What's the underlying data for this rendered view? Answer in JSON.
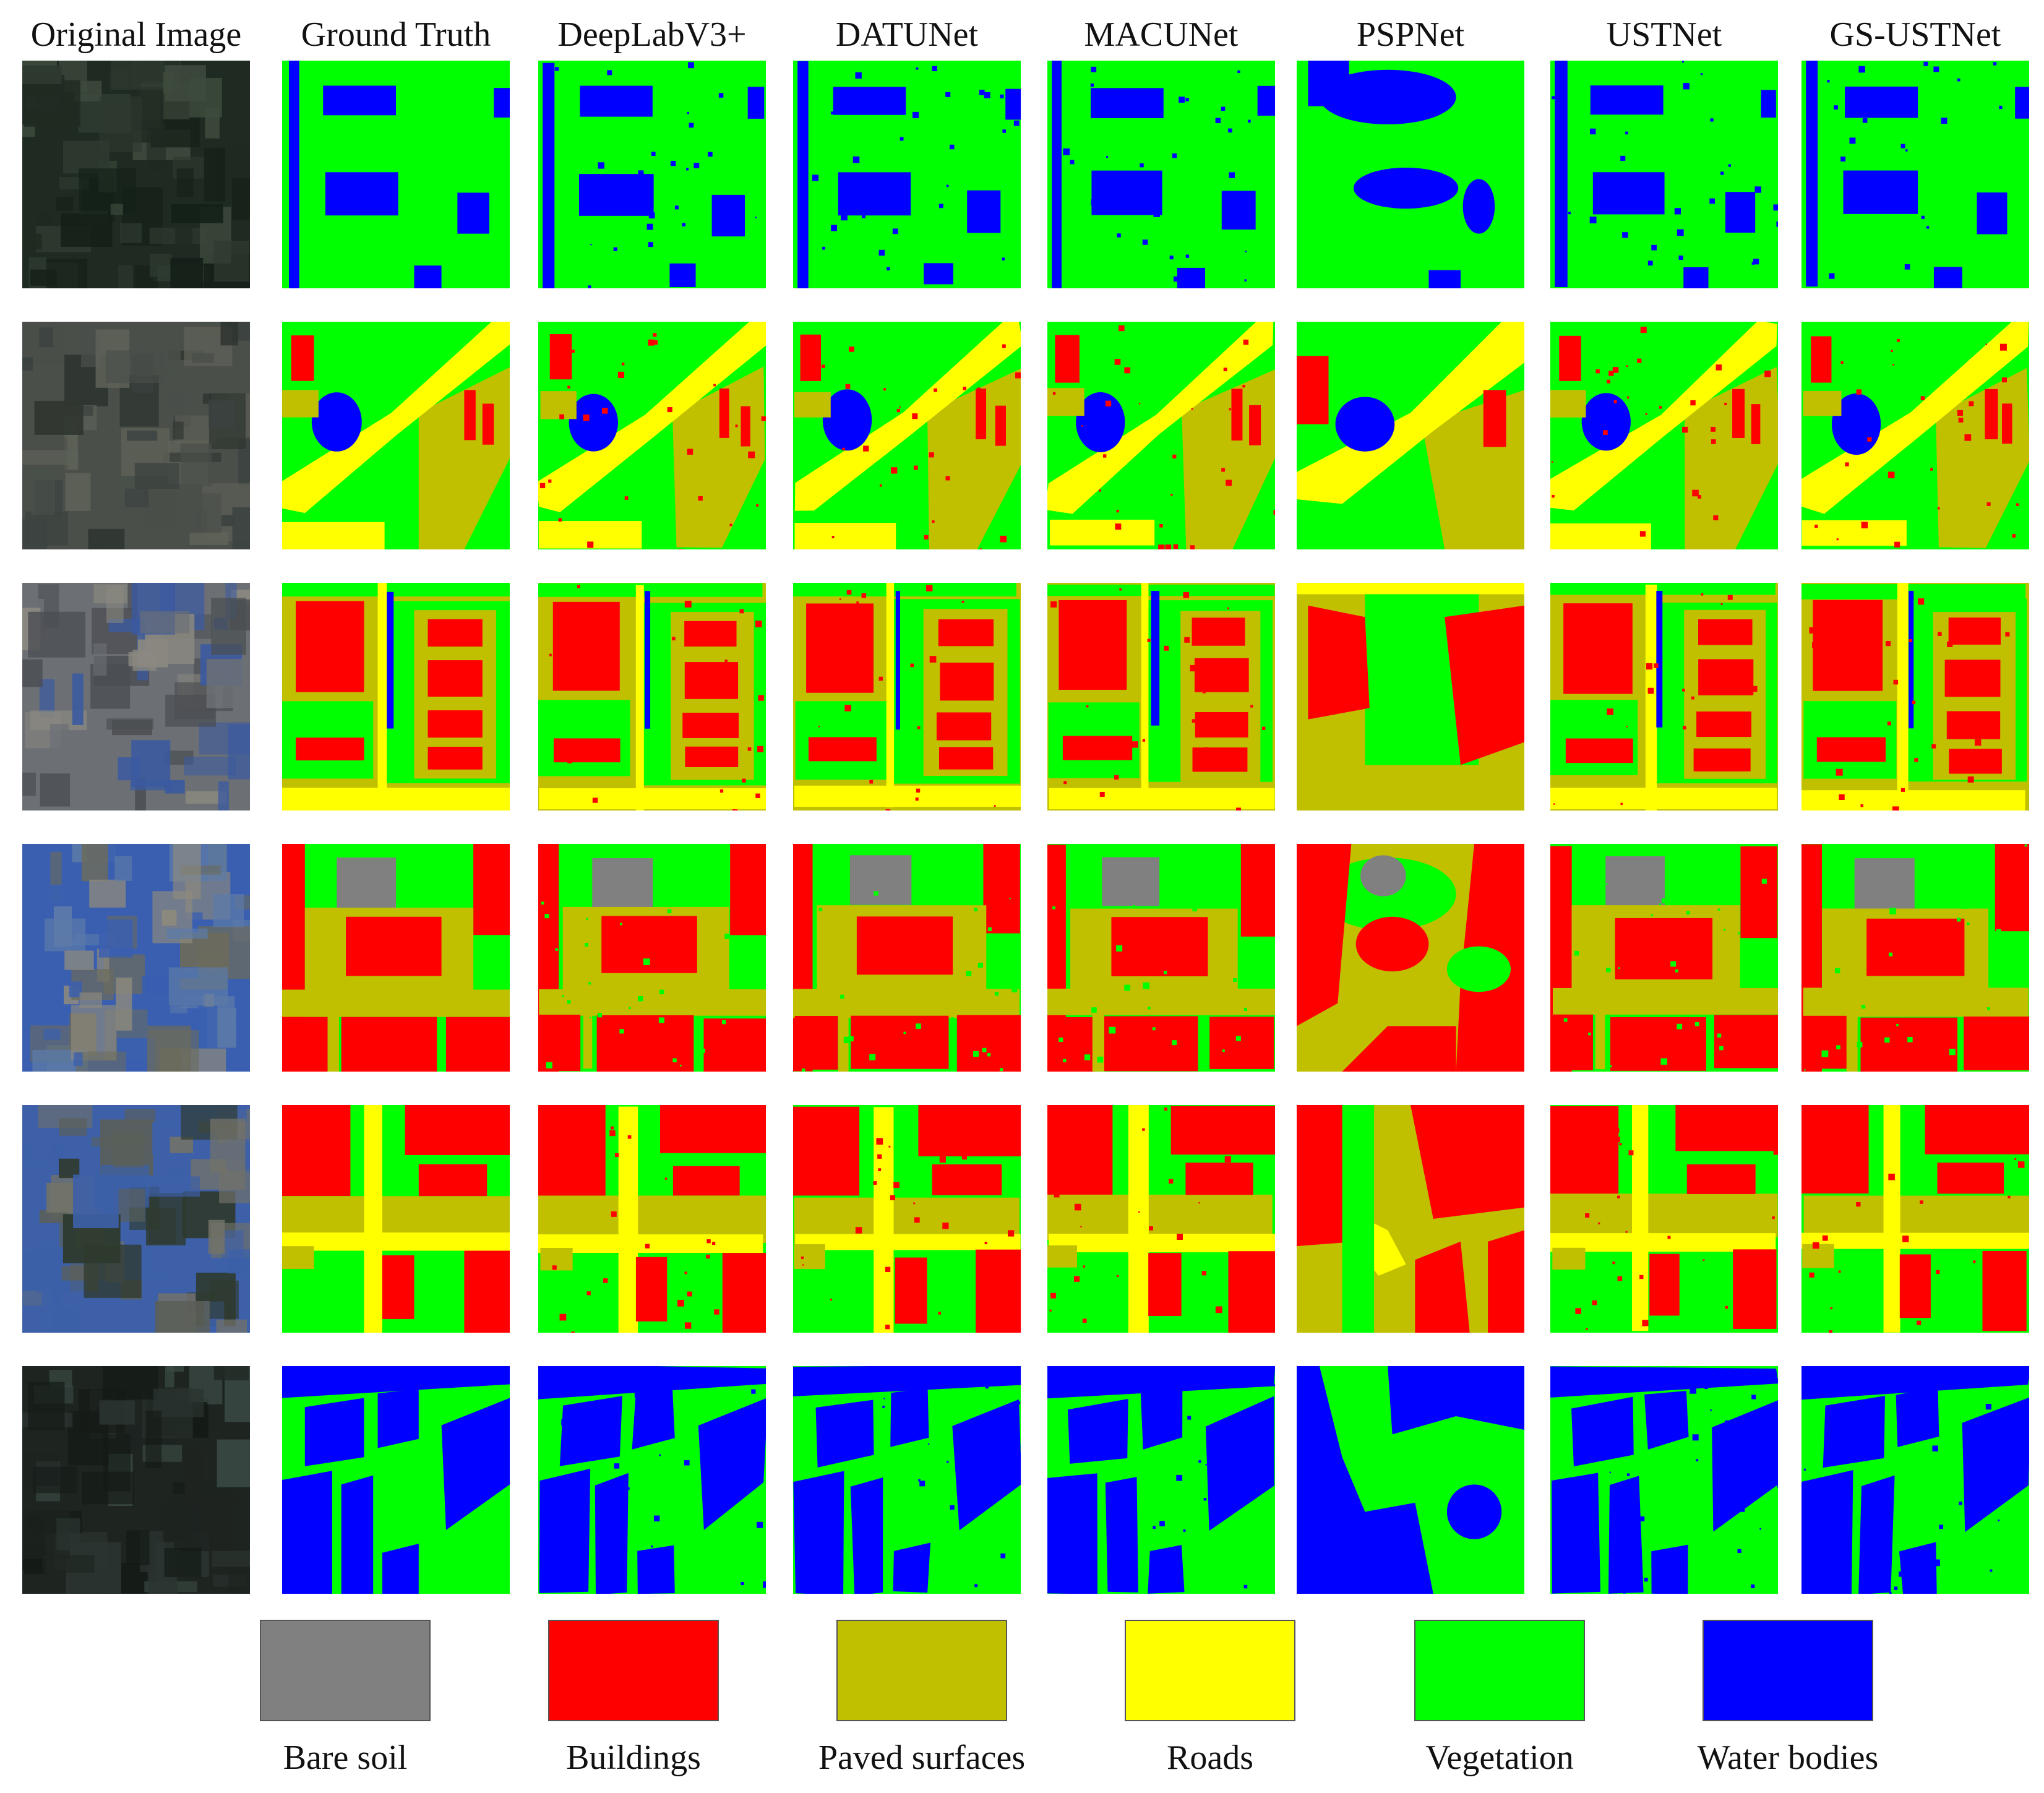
{
  "columns": [
    "Original Image",
    "Ground Truth",
    "DeepLabV3+",
    "DATUNet",
    "MACUNet",
    "PSPNet",
    "USTNet",
    "GS-USTNet"
  ],
  "legend": [
    {
      "label": "Bare soil",
      "color": "#808080"
    },
    {
      "label": "Buildings",
      "color": "#ff0000"
    },
    {
      "label": "Paved surfaces",
      "color": "#c0c000"
    },
    {
      "label": "Roads",
      "color": "#ffff00"
    },
    {
      "label": "Vegetation",
      "color": "#00ff00"
    },
    {
      "label": "Water bodies",
      "color": "#0000ff"
    }
  ],
  "class_colors": {
    "bare": "#808080",
    "building": "#ff0000",
    "paved": "#c0c000",
    "road": "#ffff00",
    "veg": "#00ff00",
    "water": "#0000ff"
  }
}
